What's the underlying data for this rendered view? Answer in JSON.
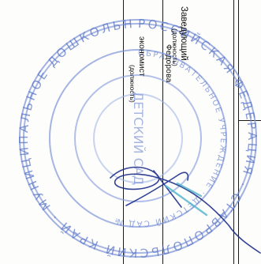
{
  "signature_block": {
    "position_1": "Заведующий",
    "caption_1": "(должность)",
    "name_1": "Федорова",
    "position_2": "экономист",
    "caption_2": "(должность)"
  },
  "stamp": {
    "outer_ring_text": "РОССИЙСКАЯ ФЕДЕРАЦИЯ · СТАВРОПОЛЬСКИЙ КРАЙ · МУНИЦИПАЛЬНОЕ ДОШКОЛЬНОЕ",
    "inner_ring_text": "ОБРАЗОВАТЕЛЬНОЕ УЧРЕЖДЕНИЕ · ДЕТСКИЙ САД №",
    "center_text": "ДЕТСКИЙ САД",
    "color": "#3b5fbf"
  },
  "colors": {
    "ink": "#111111",
    "signature": "#1d2f8a",
    "stamp": "#3b5fbf",
    "stamp_accent": "#4fb3c9"
  }
}
